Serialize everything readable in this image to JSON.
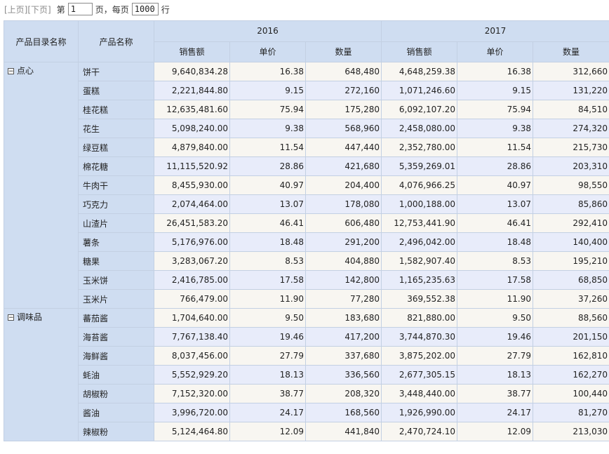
{
  "pager": {
    "prev_label": "[上页]",
    "next_label": "[下页]",
    "page_prefix": "第",
    "page_value": "1",
    "page_suffix": "页，每页",
    "size_value": "1000",
    "size_suffix": "行"
  },
  "table": {
    "header": {
      "category_col": "产品目录名称",
      "product_col": "产品名称",
      "years": [
        "2016",
        "2017"
      ],
      "metrics": [
        "销售额",
        "单价",
        "数量"
      ]
    },
    "groups": [
      {
        "category": "点心",
        "toggle": "−",
        "rows": [
          {
            "name": "饼干",
            "v": [
              "9,640,834.28",
              "16.38",
              "648,480",
              "4,648,259.38",
              "16.38",
              "312,660"
            ]
          },
          {
            "name": "蛋糕",
            "v": [
              "2,221,844.80",
              "9.15",
              "272,160",
              "1,071,246.60",
              "9.15",
              "131,220"
            ]
          },
          {
            "name": "桂花糕",
            "v": [
              "12,635,481.60",
              "75.94",
              "175,280",
              "6,092,107.20",
              "75.94",
              "84,510"
            ]
          },
          {
            "name": "花生",
            "v": [
              "5,098,240.00",
              "9.38",
              "568,960",
              "2,458,080.00",
              "9.38",
              "274,320"
            ]
          },
          {
            "name": "绿豆糕",
            "v": [
              "4,879,840.00",
              "11.54",
              "447,440",
              "2,352,780.00",
              "11.54",
              "215,730"
            ]
          },
          {
            "name": "棉花糖",
            "v": [
              "11,115,520.92",
              "28.86",
              "421,680",
              "5,359,269.01",
              "28.86",
              "203,310"
            ]
          },
          {
            "name": "牛肉干",
            "v": [
              "8,455,930.00",
              "40.97",
              "204,400",
              "4,076,966.25",
              "40.97",
              "98,550"
            ]
          },
          {
            "name": "巧克力",
            "v": [
              "2,074,464.00",
              "13.07",
              "178,080",
              "1,000,188.00",
              "13.07",
              "85,860"
            ]
          },
          {
            "name": "山渣片",
            "v": [
              "26,451,583.20",
              "46.41",
              "606,480",
              "12,753,441.90",
              "46.41",
              "292,410"
            ]
          },
          {
            "name": "薯条",
            "v": [
              "5,176,976.00",
              "18.48",
              "291,200",
              "2,496,042.00",
              "18.48",
              "140,400"
            ]
          },
          {
            "name": "糖果",
            "v": [
              "3,283,067.20",
              "8.53",
              "404,880",
              "1,582,907.40",
              "8.53",
              "195,210"
            ]
          },
          {
            "name": "玉米饼",
            "v": [
              "2,416,785.00",
              "17.58",
              "142,800",
              "1,165,235.63",
              "17.58",
              "68,850"
            ]
          },
          {
            "name": "玉米片",
            "v": [
              "766,479.00",
              "11.90",
              "77,280",
              "369,552.38",
              "11.90",
              "37,260"
            ]
          }
        ]
      },
      {
        "category": "调味品",
        "toggle": "−",
        "rows": [
          {
            "name": "蕃茄酱",
            "v": [
              "1,704,640.00",
              "9.50",
              "183,680",
              "821,880.00",
              "9.50",
              "88,560"
            ]
          },
          {
            "name": "海苔酱",
            "v": [
              "7,767,138.40",
              "19.46",
              "417,200",
              "3,744,870.30",
              "19.46",
              "201,150"
            ]
          },
          {
            "name": "海鲜酱",
            "v": [
              "8,037,456.00",
              "27.79",
              "337,680",
              "3,875,202.00",
              "27.79",
              "162,810"
            ]
          },
          {
            "name": "蚝油",
            "v": [
              "5,552,929.20",
              "18.13",
              "336,560",
              "2,677,305.15",
              "18.13",
              "162,270"
            ]
          },
          {
            "name": "胡椒粉",
            "v": [
              "7,152,320.00",
              "38.77",
              "208,320",
              "3,448,440.00",
              "38.77",
              "100,440"
            ]
          },
          {
            "name": "酱油",
            "v": [
              "3,996,720.00",
              "24.17",
              "168,560",
              "1,926,990.00",
              "24.17",
              "81,270"
            ]
          },
          {
            "name": "辣椒粉",
            "v": [
              "5,124,464.80",
              "12.09",
              "441,840",
              "2,470,724.10",
              "12.09",
              "213,030"
            ]
          }
        ]
      }
    ]
  }
}
